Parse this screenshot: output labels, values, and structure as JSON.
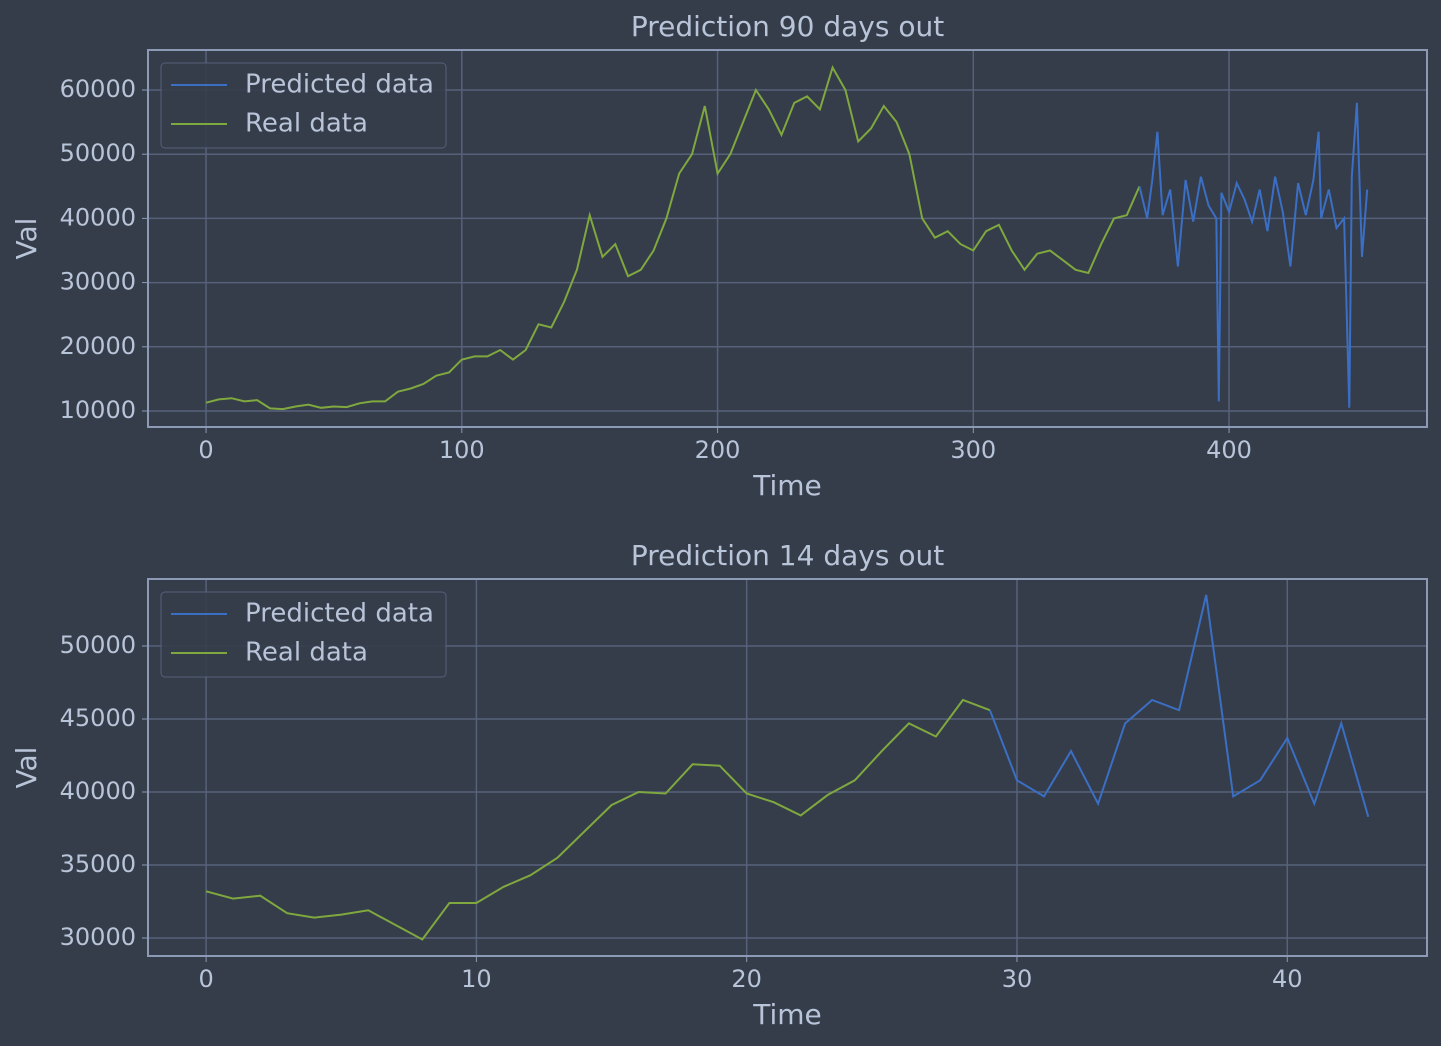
{
  "chart_data": [
    {
      "type": "line",
      "title": "Prediction 90 days out",
      "x_label": "Time",
      "y_label": "Val",
      "xlim": [
        -22.7,
        477.4
      ],
      "ylim": [
        7508,
        66230
      ],
      "xticks": [
        0,
        100,
        200,
        300,
        400
      ],
      "yticks": [
        10000,
        20000,
        30000,
        40000,
        50000,
        60000
      ],
      "grid": true,
      "legend": "upper-left",
      "series": [
        {
          "name": "Predicted data",
          "color": "#3b6fc4",
          "x": [
            365,
            368,
            370,
            372,
            374,
            377,
            380,
            383,
            386,
            389,
            392,
            395,
            396,
            397,
            400,
            403,
            406,
            409,
            412,
            415,
            418,
            421,
            424,
            427,
            430,
            433,
            435,
            436,
            439,
            442,
            445,
            447,
            448,
            450,
            452,
            454
          ],
          "values": [
            45000,
            40000,
            46000,
            53500,
            40500,
            44500,
            32500,
            46000,
            39500,
            46500,
            42000,
            40000,
            11500,
            44000,
            41000,
            45500,
            43000,
            39500,
            44500,
            38000,
            46500,
            41000,
            32500,
            45500,
            40500,
            46000,
            53500,
            40000,
            44500,
            38500,
            40000,
            10500,
            46500,
            58000,
            34000,
            44500
          ]
        },
        {
          "name": "Real data",
          "color": "#7fa83f",
          "x": [
            0,
            5,
            10,
            15,
            20,
            25,
            30,
            35,
            40,
            45,
            50,
            55,
            60,
            65,
            70,
            75,
            80,
            85,
            90,
            95,
            100,
            105,
            110,
            115,
            120,
            125,
            130,
            135,
            140,
            145,
            150,
            155,
            160,
            165,
            170,
            175,
            180,
            185,
            190,
            195,
            200,
            205,
            210,
            215,
            220,
            225,
            230,
            235,
            240,
            245,
            250,
            255,
            260,
            265,
            270,
            275,
            280,
            285,
            290,
            295,
            300,
            305,
            310,
            315,
            320,
            325,
            330,
            335,
            340,
            345,
            350,
            355,
            360,
            365
          ],
          "values": [
            11300,
            11800,
            12000,
            11500,
            11700,
            10400,
            10300,
            10700,
            11000,
            10500,
            10700,
            10600,
            11200,
            11500,
            11500,
            13000,
            13500,
            14200,
            15500,
            16000,
            18000,
            18500,
            18500,
            19500,
            18000,
            19500,
            23500,
            23000,
            27000,
            32000,
            40500,
            34000,
            36000,
            31000,
            32000,
            35000,
            40000,
            47000,
            50000,
            57500,
            47000,
            50000,
            55000,
            60000,
            57000,
            53000,
            58000,
            59000,
            57000,
            63500,
            60000,
            52000,
            54000,
            57500,
            55000,
            50000,
            40000,
            37000,
            38000,
            36000,
            35000,
            38000,
            39000,
            35000,
            32000,
            34500,
            35000,
            33500,
            32000,
            31500,
            36000,
            40000,
            40500,
            45000
          ]
        }
      ]
    },
    {
      "type": "line",
      "title": "Prediction 14 days out",
      "x_label": "Time",
      "y_label": "Val",
      "xlim": [
        -2.15,
        45.17
      ],
      "ylim": [
        28767,
        54589
      ],
      "xticks": [
        0,
        10,
        20,
        30,
        40
      ],
      "yticks": [
        30000,
        35000,
        40000,
        45000,
        50000
      ],
      "grid": true,
      "legend": "upper-left",
      "series": [
        {
          "name": "Predicted data",
          "color": "#3b6fc4",
          "x": [
            29,
            30,
            31,
            32,
            33,
            34,
            35,
            36,
            37,
            38,
            39,
            40,
            41,
            42,
            43
          ],
          "values": [
            45600,
            40800,
            39700,
            42800,
            39200,
            44700,
            46300,
            45600,
            53500,
            39700,
            40800,
            43700,
            39200,
            44700,
            38300
          ]
        },
        {
          "name": "Real data",
          "color": "#7fa83f",
          "x": [
            0,
            1,
            2,
            3,
            4,
            5,
            6,
            7,
            8,
            9,
            10,
            11,
            12,
            13,
            14,
            15,
            16,
            17,
            18,
            19,
            20,
            21,
            22,
            23,
            24,
            25,
            26,
            27,
            28,
            29
          ],
          "values": [
            33200,
            32700,
            32900,
            31700,
            31400,
            31600,
            31900,
            30900,
            29900,
            32400,
            32400,
            33500,
            34300,
            35500,
            37300,
            39100,
            40000,
            39900,
            41900,
            41800,
            39900,
            39300,
            38400,
            39800,
            40800,
            42800,
            44700,
            43800,
            46300,
            45600
          ]
        }
      ]
    }
  ]
}
